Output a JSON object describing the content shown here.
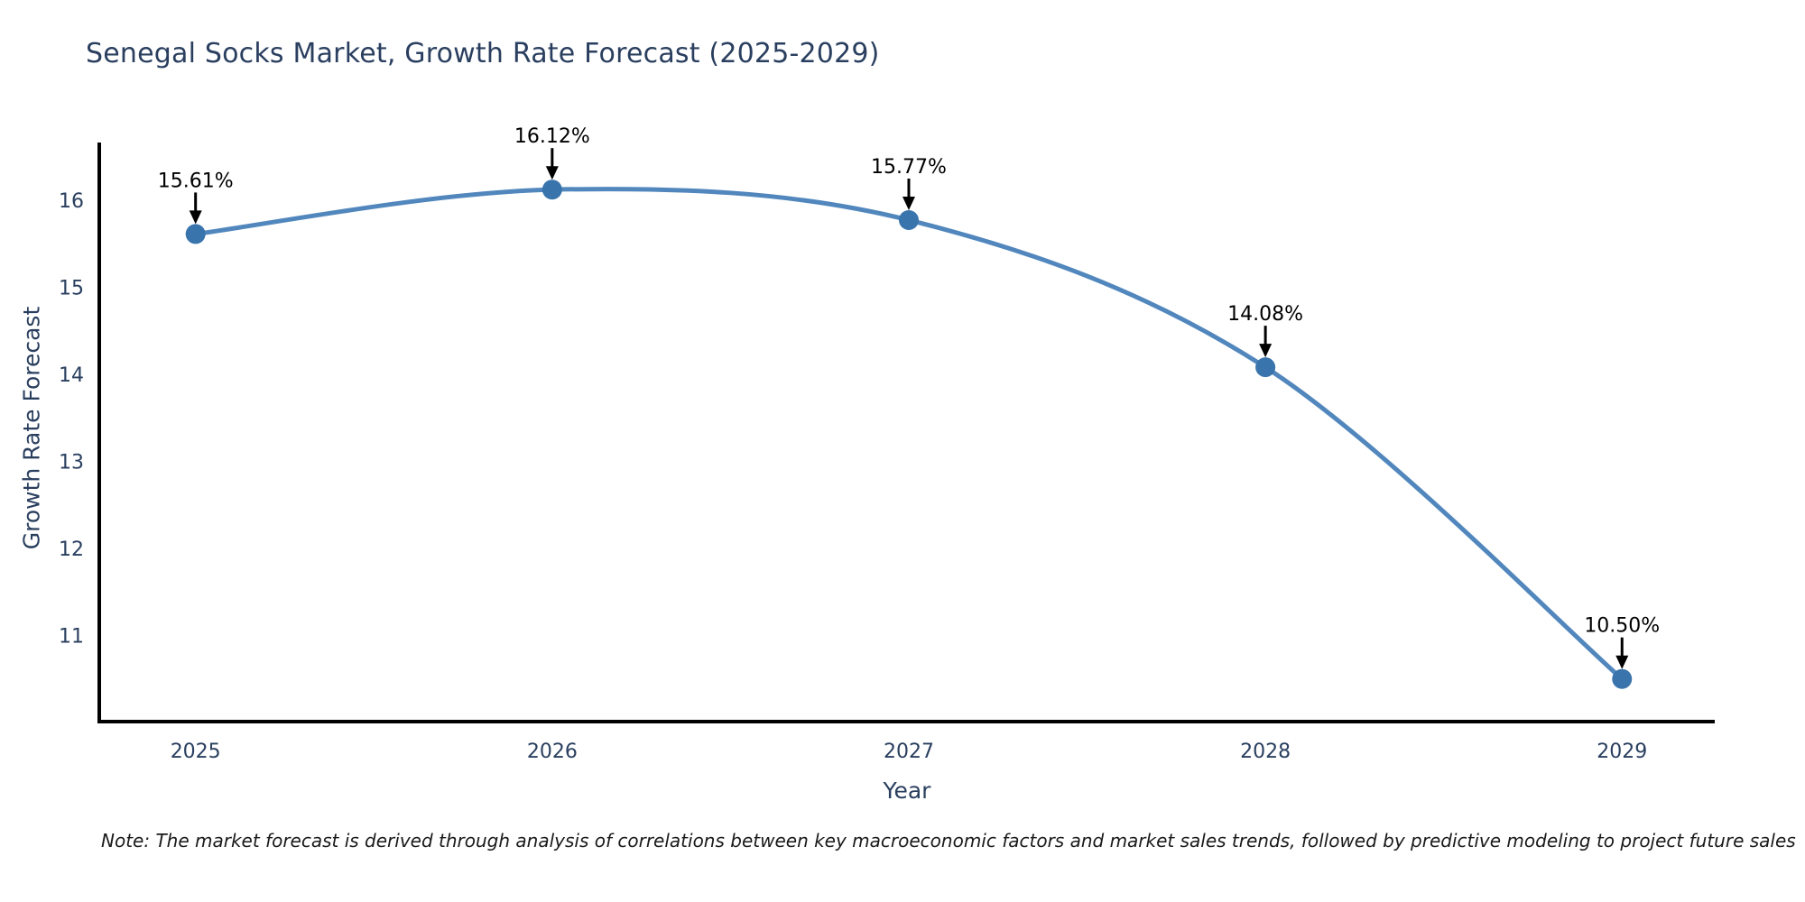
{
  "chart_data": {
    "type": "line",
    "title": "Senegal Socks Market, Growth Rate Forecast (2025-2029)",
    "xlabel": "Year",
    "ylabel": "Growth Rate Forecast",
    "x": [
      2025,
      2026,
      2027,
      2028,
      2029
    ],
    "values": [
      15.61,
      16.12,
      15.77,
      14.08,
      10.5
    ],
    "point_labels": [
      "15.61%",
      "16.12%",
      "15.77%",
      "14.08%",
      "10.50%"
    ],
    "xticks": [
      "2025",
      "2026",
      "2027",
      "2028",
      "2029"
    ],
    "yticks": [
      11,
      12,
      13,
      14,
      15,
      16
    ],
    "xlim": [
      2024.73,
      2029.26
    ],
    "ylim": [
      10.01,
      16.64
    ],
    "grid": false,
    "line_shape": "spline",
    "legend": "none",
    "colors": {
      "line": "#5187bd",
      "marker": "#3974ad",
      "annotation": "#000000",
      "axis": "#000000",
      "tick_label": "#2a3f5f",
      "title": "#2a3f5f"
    }
  },
  "note": {
    "text": "Note: The market forecast is derived through analysis of correlations between key macroeconomic factors and market sales trends, followed by predictive modeling to project future sales"
  }
}
